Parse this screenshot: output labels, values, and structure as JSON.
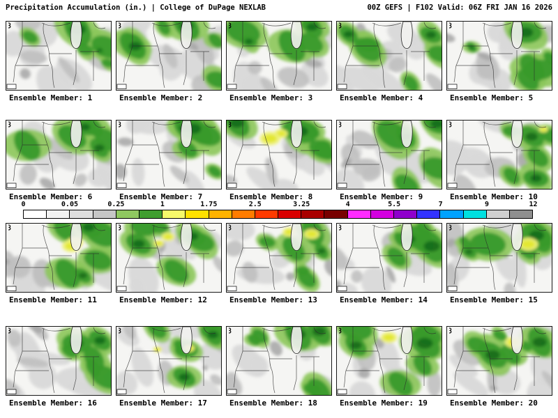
{
  "header": {
    "left": "Precipitation Accumulation (in.) | College of DuPage NEXLAB",
    "right": "00Z GEFS | F102 Valid: 06Z FRI JAN 16 2026"
  },
  "colorbar": {
    "ticks": [
      "0",
      "0.05",
      "0.25",
      "1",
      "1.75",
      "2.5",
      "3.25",
      "4",
      "5.5",
      "7",
      "9",
      "12"
    ],
    "segment_colors": [
      "#ffffff",
      "#f2f2f2",
      "#dedede",
      "#c6c6c6",
      "#8fc860",
      "#3f9e2f",
      "#f6f96a",
      "#ffe100",
      "#ffb300",
      "#ff7c00",
      "#ff3a00",
      "#d90000",
      "#a90000",
      "#780000",
      "#ff2bff",
      "#d400e0",
      "#8f00cc",
      "#3333ff",
      "#00a2ff",
      "#00e0e0",
      "#cfcfcf",
      "#8f8f8f"
    ]
  },
  "map_palette": {
    "base": "#f5f5f3",
    "gray_light": "#d9d9d9",
    "gray_mid": "#c0c0c0",
    "gray_dark": "#a6a6a6",
    "green_light": "#8cc65a",
    "green": "#389a2b",
    "green_dark": "#166b18",
    "yellow_light": "#eef17a",
    "yellow": "#e3e72e",
    "boundary": "#2b2b2b"
  },
  "panels": [
    {
      "label": "Ensemble Member: 1"
    },
    {
      "label": "Ensemble Member: 2"
    },
    {
      "label": "Ensemble Member: 3"
    },
    {
      "label": "Ensemble Member: 4"
    },
    {
      "label": "Ensemble Member: 5"
    },
    {
      "label": "Ensemble Member: 6"
    },
    {
      "label": "Ensemble Member: 7"
    },
    {
      "label": "Ensemble Member: 8"
    },
    {
      "label": "Ensemble Member: 9"
    },
    {
      "label": "Ensemble Member: 10"
    },
    {
      "label": "Ensemble Member: 11"
    },
    {
      "label": "Ensemble Member: 12"
    },
    {
      "label": "Ensemble Member: 13"
    },
    {
      "label": "Ensemble Member: 14"
    },
    {
      "label": "Ensemble Member: 15"
    },
    {
      "label": "Ensemble Member: 16"
    },
    {
      "label": "Ensemble Member: 17"
    },
    {
      "label": "Ensemble Member: 18"
    },
    {
      "label": "Ensemble Member: 19"
    },
    {
      "label": "Ensemble Member: 20"
    }
  ]
}
